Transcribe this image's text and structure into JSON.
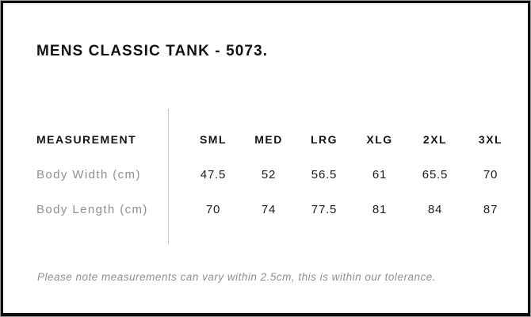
{
  "page": {
    "title": "MENS CLASSIC TANK - 5073."
  },
  "table": {
    "header_label": "MEASUREMENT",
    "size_headers": [
      "SML",
      "MED",
      "LRG",
      "XLG",
      "2XL",
      "3XL"
    ],
    "rows": [
      {
        "label": "Body Width (cm)",
        "values": [
          "47.5",
          "52",
          "56.5",
          "61",
          "65.5",
          "70"
        ]
      },
      {
        "label": "Body Length (cm)",
        "values": [
          "70",
          "74",
          "77.5",
          "81",
          "84",
          "87"
        ]
      }
    ]
  },
  "note": "Please note measurements can vary within 2.5cm, this is within our tolerance.",
  "colors": {
    "frame_border": "#0a0a0a",
    "title_text": "#121212",
    "header_text": "#141414",
    "value_text": "#1c1c1c",
    "row_label_text": "#8f8f8f",
    "note_text": "#8f8f8f",
    "divider": "#c6c6c6",
    "background": "#ffffff"
  }
}
